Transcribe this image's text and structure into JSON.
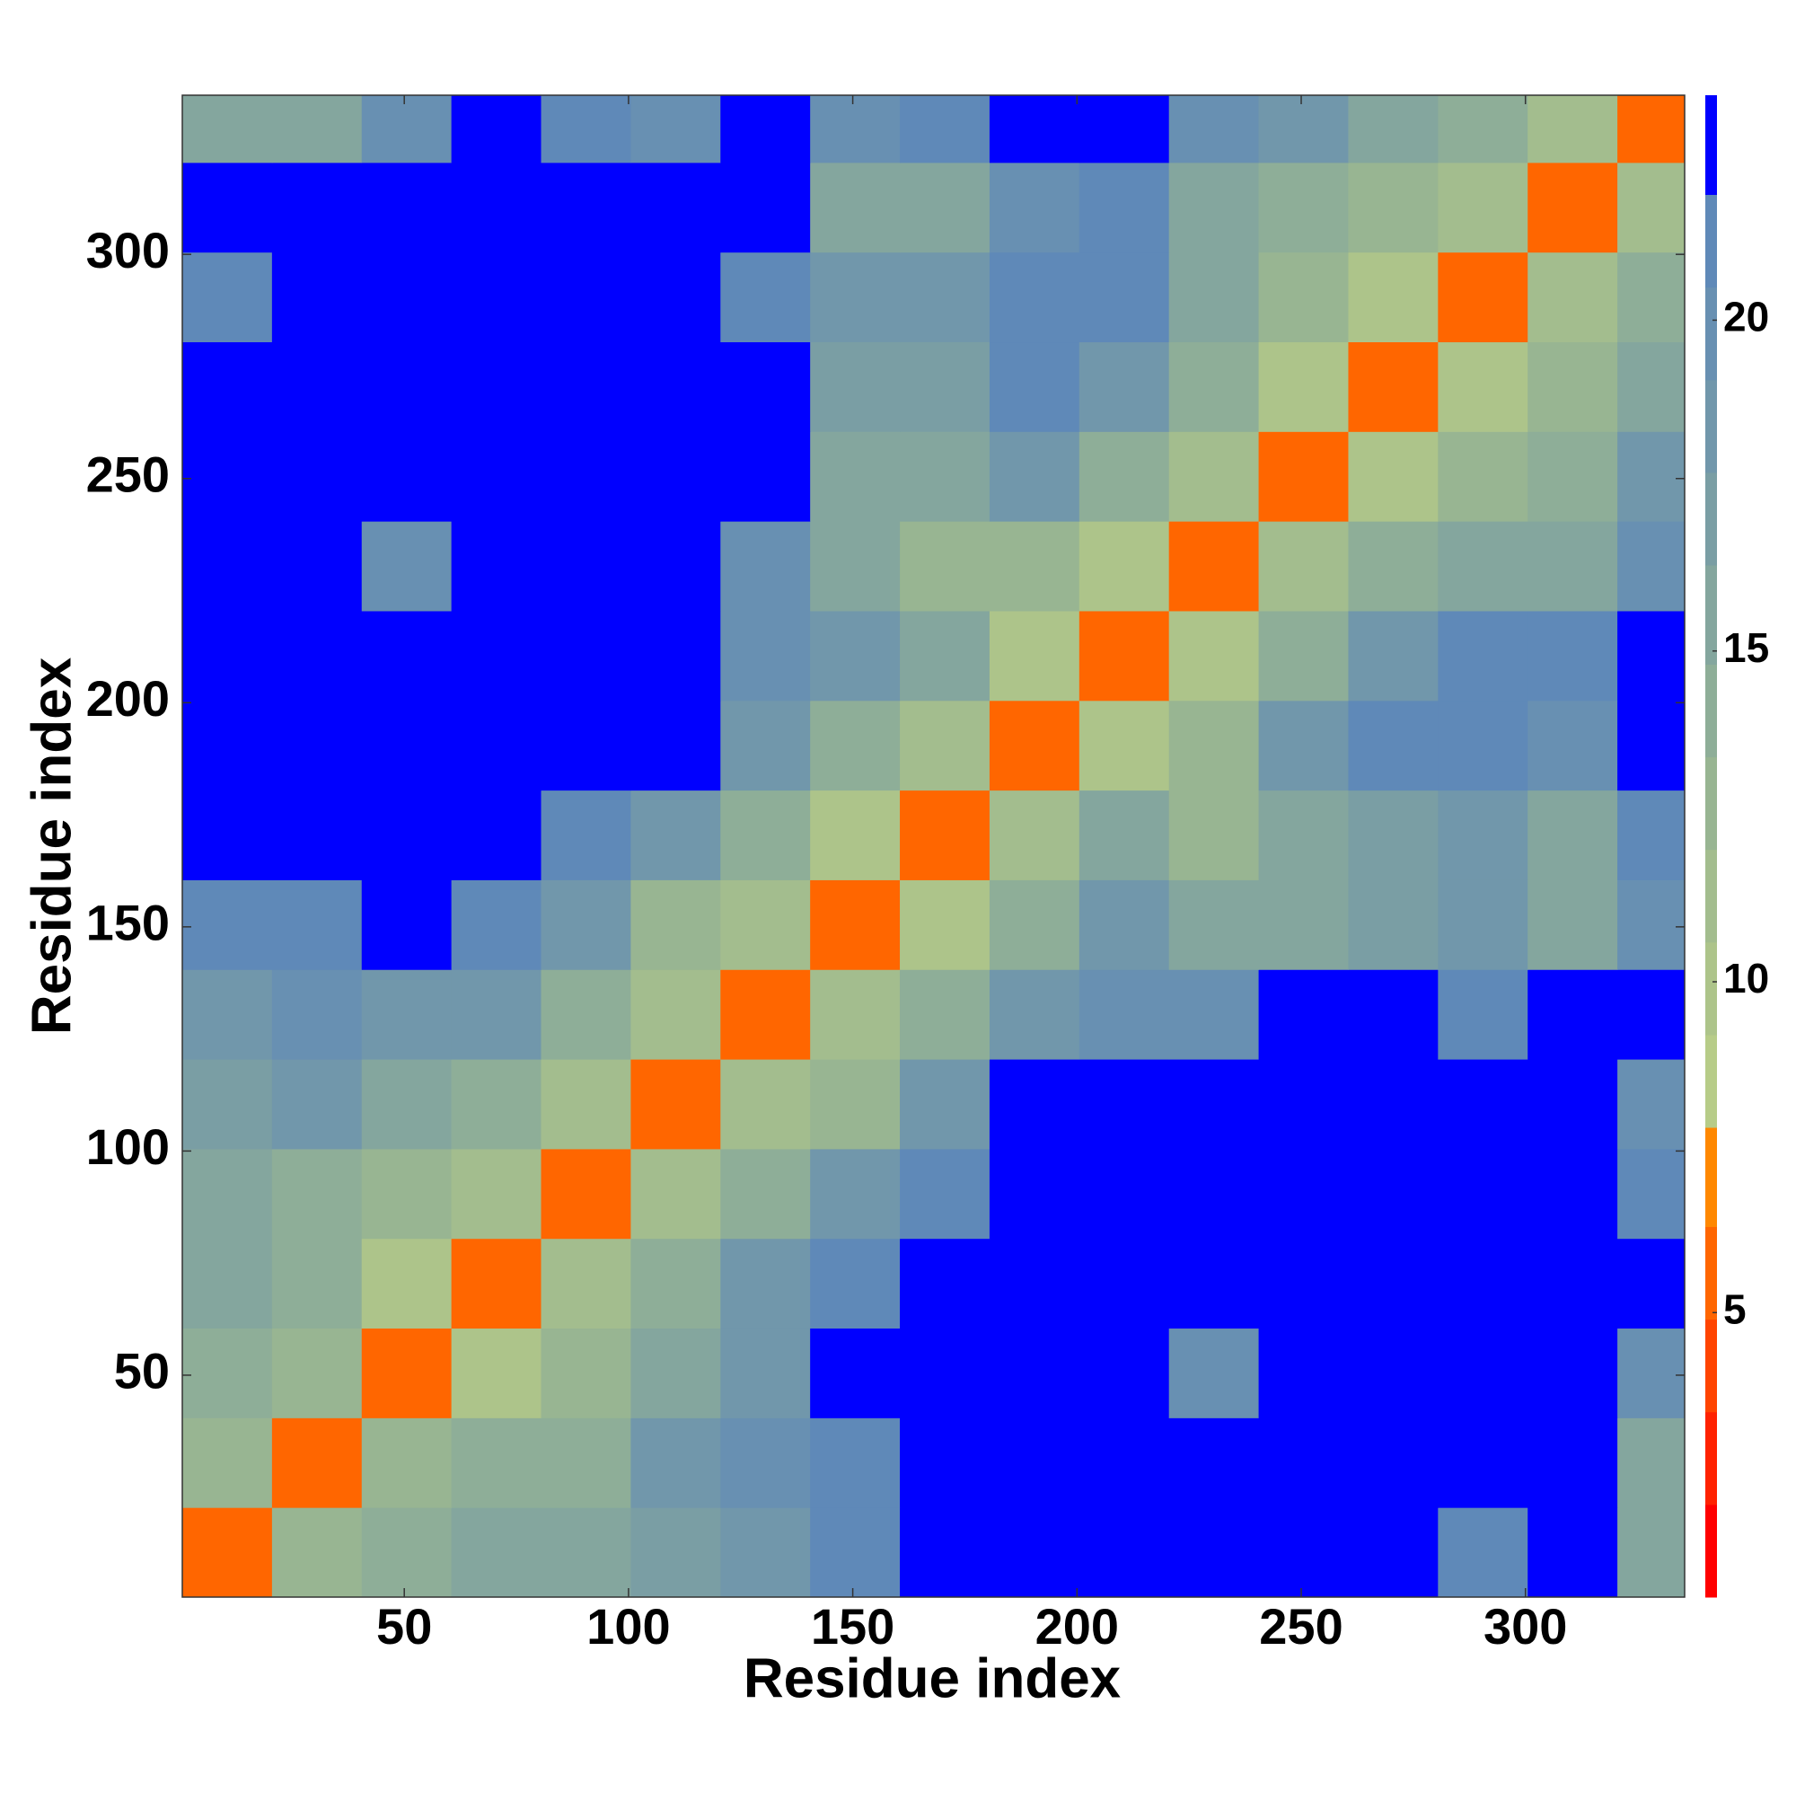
{
  "chart_data": {
    "type": "heatmap",
    "xlabel": "Residue index",
    "ylabel": "Residue index",
    "x_edges": [
      0.5,
      20.5,
      40.5,
      60.5,
      80.5,
      100.5,
      120.5,
      140.5,
      160.5,
      180.5,
      200.5,
      220.5,
      240.5,
      260.5,
      280.5,
      300.5,
      320.5,
      335.5
    ],
    "y_edges": [
      0.5,
      20.5,
      40.5,
      60.5,
      80.5,
      100.5,
      120.5,
      140.5,
      160.5,
      180.5,
      200.5,
      220.5,
      240.5,
      260.5,
      280.5,
      300.5,
      320.5,
      335.5
    ],
    "z": [
      [
        6,
        12,
        14,
        15,
        15,
        17,
        19,
        21,
        23,
        22,
        23,
        23,
        23,
        23,
        21,
        23,
        15
      ],
      [
        12,
        6,
        12,
        14,
        14,
        18,
        20,
        21,
        23,
        23,
        23,
        22,
        23,
        23,
        23,
        23,
        16
      ],
      [
        14,
        12,
        6,
        10,
        13,
        16,
        19,
        22,
        23,
        22,
        23,
        20,
        23,
        23,
        22,
        23,
        20
      ],
      [
        15,
        14,
        10,
        6,
        11,
        14,
        18,
        21,
        23,
        23,
        23,
        23,
        23,
        23,
        23,
        23,
        23
      ],
      [
        15,
        14,
        13,
        11,
        6,
        11,
        14,
        18,
        21,
        23,
        23,
        23,
        23,
        23,
        23,
        23,
        21
      ],
      [
        17,
        18,
        16,
        14,
        11,
        6,
        11,
        13,
        18,
        23,
        23,
        22,
        23,
        23,
        23,
        23,
        20
      ],
      [
        19,
        20,
        19,
        18,
        14,
        11,
        6,
        11,
        14,
        19,
        20,
        20,
        22,
        22,
        21,
        22,
        22
      ],
      [
        21,
        21,
        22,
        21,
        18,
        13,
        11,
        6,
        10,
        14,
        18,
        15,
        16,
        17,
        18,
        16,
        20
      ],
      [
        23,
        23,
        23,
        23,
        21,
        18,
        14,
        10,
        6,
        11,
        16,
        13,
        16,
        17,
        18,
        15,
        21
      ],
      [
        22,
        23,
        22,
        23,
        23,
        23,
        19,
        14,
        11,
        6,
        10,
        13,
        18,
        21,
        21,
        20,
        23
      ],
      [
        23,
        23,
        23,
        23,
        23,
        23,
        20,
        18,
        16,
        10,
        6,
        10,
        14,
        18,
        21,
        21,
        22
      ],
      [
        23,
        22,
        20,
        23,
        23,
        22,
        20,
        15,
        13,
        13,
        10,
        6,
        11,
        14,
        16,
        15,
        20
      ],
      [
        23,
        23,
        23,
        23,
        23,
        23,
        22,
        16,
        16,
        18,
        14,
        11,
        6,
        10,
        13,
        14,
        18
      ],
      [
        23,
        23,
        23,
        23,
        23,
        23,
        22,
        17,
        17,
        21,
        18,
        14,
        10,
        6,
        10,
        13,
        16
      ],
      [
        21,
        23,
        22,
        23,
        23,
        23,
        21,
        18,
        18,
        21,
        21,
        16,
        13,
        10,
        6,
        11,
        14
      ],
      [
        23,
        23,
        23,
        23,
        23,
        23,
        22,
        16,
        15,
        20,
        21,
        15,
        14,
        13,
        11,
        6,
        11
      ],
      [
        15,
        16,
        20,
        23,
        21,
        20,
        22,
        20,
        21,
        23,
        22,
        20,
        18,
        16,
        14,
        11,
        6
      ]
    ],
    "xlim": [
      0.5,
      335.5
    ],
    "ylim": [
      0.5,
      335.5
    ],
    "xticks": [
      50,
      100,
      150,
      200,
      250,
      300
    ],
    "yticks": [
      50,
      100,
      150,
      200,
      250,
      300
    ],
    "colorbar": {
      "levels": [
        0.7,
        2.1,
        3.5,
        4.9,
        6.3,
        7.8,
        9.2,
        10.6,
        12.0,
        13.4,
        14.8,
        16.3,
        17.7,
        19.1,
        20.5,
        21.9,
        23.4
      ],
      "colors": [
        "#ff0000",
        "#ff2200",
        "#ff4400",
        "#ff6600",
        "#ff8800",
        "#b7cc88",
        "#adc48a",
        "#a3bd8e",
        "#98b592",
        "#8eae98",
        "#84a69e",
        "#7a9ea4",
        "#7197ab",
        "#6890b2",
        "#5f89b8",
        "#0000ff"
      ],
      "ticks": [
        5,
        10,
        15,
        20
      ]
    }
  }
}
